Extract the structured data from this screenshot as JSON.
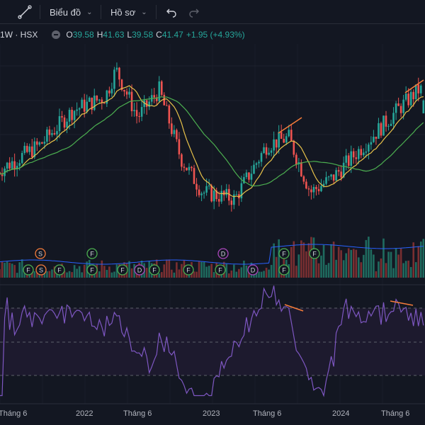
{
  "toolbar": {
    "chart_label": "Biểu đồ",
    "profile_label": "Hồ sơ"
  },
  "legend": {
    "symbol": "1W · HSX",
    "o_label": "O",
    "o_value": "39.58",
    "h_label": "H",
    "h_value": "41.63",
    "l_label": "L",
    "l_value": "39.58",
    "c_label": "C",
    "c_value": "41.47",
    "change": "+1.95 (+4.93%)"
  },
  "x_axis": {
    "labels": [
      "Tháng 6",
      "2022",
      "Tháng 6",
      "2023",
      "Tháng 6",
      "2024",
      "Tháng 6"
    ]
  },
  "colors": {
    "background": "#131722",
    "up": "#26a69a",
    "down": "#ef5350",
    "ma_fast": "#e8c24a",
    "ma_slow": "#4caf50",
    "rsi": "#7e57c2",
    "trendline": "#f57c3a",
    "volume_ma": "#2962ff"
  },
  "events": {
    "markers": [
      "S",
      "F",
      "D",
      "F",
      "F",
      "S",
      "F",
      "F",
      "F",
      "F",
      "D",
      "F",
      "F",
      "F",
      "D",
      "F"
    ]
  },
  "chart_data": {
    "type": "candlestick",
    "title": "",
    "symbol": "1W · HSX",
    "last_bar": {
      "open": 39.58,
      "high": 41.63,
      "low": 39.58,
      "close": 41.47,
      "change": 1.95,
      "change_pct": 4.93
    },
    "indicators": [
      "moving average (fast)",
      "moving average (slow)",
      "volume",
      "volume moving average",
      "RSI"
    ],
    "approx_close_path": [
      {
        "x": "2021-05",
        "close": 31
      },
      {
        "x": "2021-09",
        "close": 35
      },
      {
        "x": "2021-12",
        "close": 40
      },
      {
        "x": "2022-03",
        "close": 42
      },
      {
        "x": "2022-04",
        "close": 46
      },
      {
        "x": "2022-06",
        "close": 39
      },
      {
        "x": "2022-08",
        "close": 43
      },
      {
        "x": "2022-10",
        "close": 33
      },
      {
        "x": "2022-12",
        "close": 28
      },
      {
        "x": "2023-03",
        "close": 27
      },
      {
        "x": "2023-06",
        "close": 35
      },
      {
        "x": "2023-08",
        "close": 36
      },
      {
        "x": "2023-10",
        "close": 28
      },
      {
        "x": "2023-12",
        "close": 30
      },
      {
        "x": "2024-03",
        "close": 35
      },
      {
        "x": "2024-06",
        "close": 40
      },
      {
        "x": "2024-08",
        "close": 43
      }
    ],
    "rsi_levels": [
      70,
      50,
      30
    ],
    "grid": true,
    "legend_position": "top-left"
  }
}
